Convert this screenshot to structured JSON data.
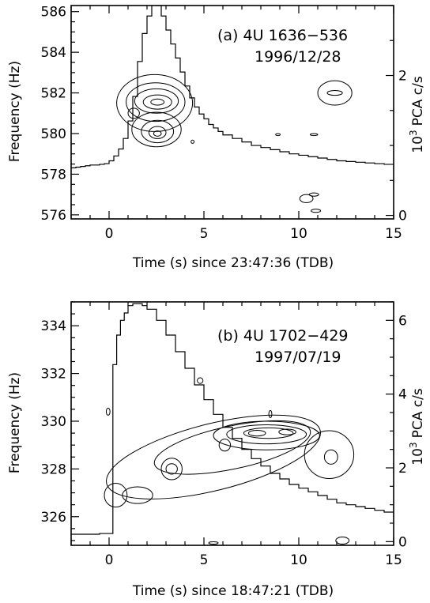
{
  "chart_data": [
    {
      "type": "line",
      "panel": "a",
      "annotation_line1": "(a) 4U 1636−536",
      "annotation_line2": "1996/12/28",
      "xlabel": "Time (s) since 23:47:36 (TDB)",
      "ylabel": "Frequency (Hz)",
      "y2label_prefix": "10",
      "y2label_exp": "3",
      "y2label_suffix": "PCA c/s",
      "xlim": [
        -2,
        15
      ],
      "ylim": [
        575.8,
        586.3
      ],
      "y2lim": [
        -0.05,
        3.0
      ],
      "xticks": [
        0,
        5,
        10,
        15
      ],
      "yticks": [
        576,
        578,
        580,
        582,
        584,
        586
      ],
      "y2ticks": [
        0,
        2
      ],
      "lightcurve": {
        "t": [
          -2.0,
          -1.75,
          -1.5,
          -1.25,
          -1.0,
          -0.75,
          -0.5,
          -0.25,
          0.0,
          0.25,
          0.5,
          0.75,
          1.0,
          1.25,
          1.5,
          1.75,
          2.0,
          2.25,
          2.5,
          2.75,
          3.0,
          3.25,
          3.5,
          3.75,
          4.0,
          4.25,
          4.5,
          4.75,
          5.0,
          5.25,
          5.5,
          5.75,
          6.0,
          6.5,
          7.0,
          7.5,
          8.0,
          8.5,
          9.0,
          9.5,
          10.0,
          10.5,
          11.0,
          11.5,
          12.0,
          12.5,
          13.0,
          13.5,
          14.0,
          14.5,
          15.0
        ],
        "rate": [
          0.68,
          0.69,
          0.7,
          0.71,
          0.72,
          0.72,
          0.73,
          0.74,
          0.78,
          0.85,
          0.95,
          1.1,
          1.35,
          1.7,
          2.2,
          2.6,
          2.85,
          3.1,
          3.0,
          2.85,
          2.65,
          2.45,
          2.25,
          2.05,
          1.85,
          1.68,
          1.55,
          1.45,
          1.38,
          1.3,
          1.25,
          1.2,
          1.15,
          1.1,
          1.05,
          1.0,
          0.97,
          0.94,
          0.91,
          0.88,
          0.86,
          0.84,
          0.82,
          0.8,
          0.78,
          0.77,
          0.76,
          0.75,
          0.74,
          0.73,
          0.72
        ]
      },
      "contours": [
        {
          "cx": 2.4,
          "cy": 581.5,
          "rx": 2.0,
          "ry": 1.4
        },
        {
          "cx": 2.45,
          "cy": 581.55,
          "rx": 1.55,
          "ry": 0.95
        },
        {
          "cx": 2.5,
          "cy": 581.6,
          "rx": 1.15,
          "ry": 0.6
        },
        {
          "cx": 2.55,
          "cy": 581.55,
          "rx": 0.75,
          "ry": 0.35
        },
        {
          "cx": 2.55,
          "cy": 581.55,
          "rx": 0.35,
          "ry": 0.15
        },
        {
          "cx": 2.5,
          "cy": 580.2,
          "rx": 1.3,
          "ry": 0.85
        },
        {
          "cx": 2.55,
          "cy": 580.1,
          "rx": 0.85,
          "ry": 0.55
        },
        {
          "cx": 2.55,
          "cy": 580.05,
          "rx": 0.45,
          "ry": 0.3
        },
        {
          "cx": 2.55,
          "cy": 580.0,
          "rx": 0.2,
          "ry": 0.13
        },
        {
          "cx": 1.3,
          "cy": 581.0,
          "rx": 0.3,
          "ry": 0.25
        },
        {
          "cx": 11.9,
          "cy": 582.0,
          "rx": 0.9,
          "ry": 0.6
        },
        {
          "cx": 11.9,
          "cy": 582.0,
          "rx": 0.4,
          "ry": 0.12
        },
        {
          "cx": 8.9,
          "cy": 579.95,
          "rx": 0.12,
          "ry": 0.05
        },
        {
          "cx": 10.4,
          "cy": 576.8,
          "rx": 0.35,
          "ry": 0.2
        },
        {
          "cx": 10.8,
          "cy": 579.95,
          "rx": 0.2,
          "ry": 0.05
        },
        {
          "cx": 10.8,
          "cy": 577.0,
          "rx": 0.25,
          "ry": 0.08
        },
        {
          "cx": 10.9,
          "cy": 576.2,
          "rx": 0.25,
          "ry": 0.08
        },
        {
          "cx": 4.4,
          "cy": 579.6,
          "rx": 0.08,
          "ry": 0.08
        }
      ]
    },
    {
      "type": "line",
      "panel": "b",
      "annotation_line1": "(b) 4U 1702−429",
      "annotation_line2": "1997/07/19",
      "xlabel": "Time (s) since 18:47:21 (TDB)",
      "ylabel": "Frequency (Hz)",
      "y2label_prefix": "10",
      "y2label_exp": "3",
      "y2label_suffix": "PCA c/s",
      "xlim": [
        -2,
        15
      ],
      "ylim": [
        324.8,
        335.0
      ],
      "y2lim": [
        -0.1,
        6.5
      ],
      "xticks": [
        0,
        5,
        10,
        15
      ],
      "yticks": [
        326,
        328,
        330,
        332,
        334
      ],
      "y2ticks": [
        0,
        2,
        4,
        6
      ],
      "lightcurve": {
        "t": [
          -2.0,
          -1.5,
          -1.0,
          -0.5,
          0.0,
          0.2,
          0.4,
          0.6,
          0.8,
          1.0,
          1.25,
          1.5,
          1.75,
          2.0,
          2.5,
          3.0,
          3.5,
          4.0,
          4.5,
          5.0,
          5.5,
          6.0,
          6.5,
          7.0,
          7.5,
          8.0,
          8.5,
          9.0,
          9.5,
          10.0,
          10.5,
          11.0,
          11.5,
          12.0,
          12.5,
          13.0,
          13.5,
          14.0,
          14.5,
          15.0
        ],
        "rate": [
          0.2,
          0.2,
          0.2,
          0.22,
          0.22,
          4.8,
          5.6,
          6.0,
          6.2,
          6.4,
          6.45,
          6.45,
          6.4,
          6.3,
          6.0,
          5.6,
          5.15,
          4.7,
          4.25,
          3.85,
          3.45,
          3.1,
          2.8,
          2.5,
          2.25,
          2.05,
          1.85,
          1.7,
          1.55,
          1.45,
          1.35,
          1.25,
          1.15,
          1.05,
          1.0,
          0.95,
          0.9,
          0.85,
          0.8,
          0.75
        ]
      },
      "contours": [
        {
          "cx": 5.5,
          "cy": 328.5,
          "rx": 5.8,
          "ry": 1.4,
          "rot": -14
        },
        {
          "cx": 6.5,
          "cy": 328.9,
          "rx": 4.2,
          "ry": 0.9,
          "rot": -12
        },
        {
          "cx": 3.3,
          "cy": 328.0,
          "rx": 0.55,
          "ry": 0.45
        },
        {
          "cx": 3.3,
          "cy": 328.0,
          "rx": 0.3,
          "ry": 0.22
        },
        {
          "cx": 8.3,
          "cy": 329.4,
          "rx": 2.8,
          "ry": 0.6
        },
        {
          "cx": 8.3,
          "cy": 329.45,
          "rx": 2.1,
          "ry": 0.4
        },
        {
          "cx": 8.4,
          "cy": 329.5,
          "rx": 1.3,
          "ry": 0.22
        },
        {
          "cx": 9.4,
          "cy": 329.55,
          "rx": 0.45,
          "ry": 0.12
        },
        {
          "cx": 7.8,
          "cy": 329.5,
          "rx": 0.45,
          "ry": 0.12
        },
        {
          "cx": 6.1,
          "cy": 329.0,
          "rx": 0.3,
          "ry": 0.25
        },
        {
          "cx": 11.7,
          "cy": 328.5,
          "rx": 0.35,
          "ry": 0.3
        },
        {
          "cx": 11.6,
          "cy": 328.6,
          "rx": 1.3,
          "ry": 1.0
        },
        {
          "cx": 0.35,
          "cy": 326.9,
          "rx": 0.6,
          "ry": 0.5
        },
        {
          "cx": 1.5,
          "cy": 326.9,
          "rx": 0.8,
          "ry": 0.35
        },
        {
          "cx": -0.05,
          "cy": 330.4,
          "rx": 0.1,
          "ry": 0.15
        },
        {
          "cx": 4.8,
          "cy": 331.7,
          "rx": 0.15,
          "ry": 0.12
        },
        {
          "cx": 8.5,
          "cy": 330.3,
          "rx": 0.08,
          "ry": 0.15
        },
        {
          "cx": 12.3,
          "cy": 325.0,
          "rx": 0.35,
          "ry": 0.15
        },
        {
          "cx": 5.5,
          "cy": 324.9,
          "rx": 0.25,
          "ry": 0.05
        }
      ]
    }
  ]
}
